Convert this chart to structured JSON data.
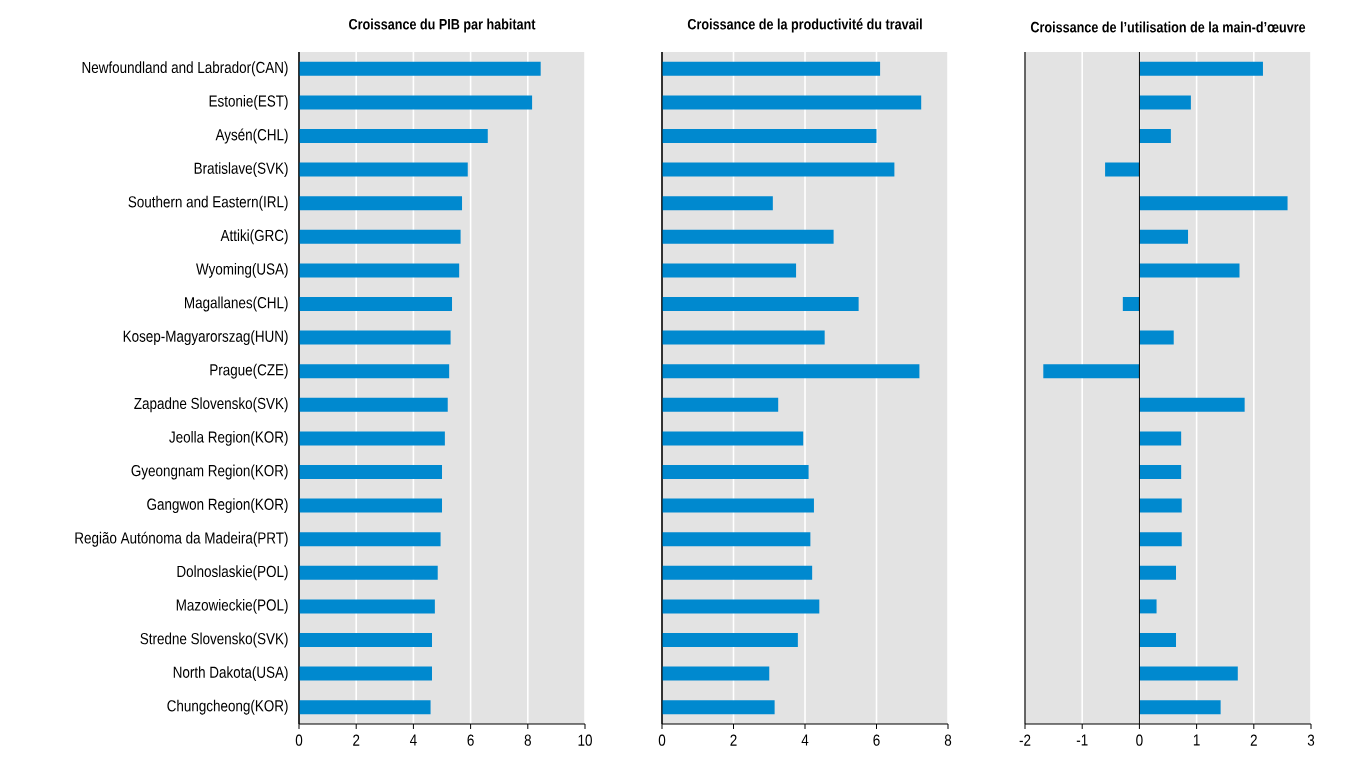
{
  "chart_data": [
    {
      "type": "bar",
      "orientation": "horizontal",
      "title": "Croissance du PIB par habitant",
      "categories": [
        "Newfoundland and Labrador(CAN)",
        "Estonie(EST)",
        "Aysén(CHL)",
        "Bratislave(SVK)",
        "Southern and Eastern(IRL)",
        "Attiki(GRC)",
        "Wyoming(USA)",
        "Magallanes(CHL)",
        "Kosep-Magyarorszag(HUN)",
        "Prague(CZE)",
        "Zapadne Slovensko(SVK)",
        "Jeolla Region(KOR)",
        "Gyeongnam Region(KOR)",
        "Gangwon Region(KOR)",
        "Região Autónoma da Madeira(PRT)",
        "Dolnoslaskie(POL)",
        "Mazowieckie(POL)",
        "Stredne Slovensko(SVK)",
        "North Dakota(USA)",
        "Chungcheong(KOR)"
      ],
      "values": [
        8.45,
        8.15,
        6.6,
        5.9,
        5.7,
        5.65,
        5.6,
        5.35,
        5.3,
        5.25,
        5.2,
        5.1,
        5.0,
        5.0,
        4.95,
        4.85,
        4.75,
        4.65,
        4.65,
        4.6
      ],
      "color": "#0089cf",
      "xlim": [
        0,
        10
      ],
      "xticks": [
        0,
        2,
        4,
        6,
        8,
        10
      ],
      "grid": "x"
    },
    {
      "type": "bar",
      "orientation": "horizontal",
      "title": "Croissance de la productivité du travail",
      "values": [
        6.1,
        7.25,
        6.0,
        6.5,
        3.1,
        4.8,
        3.75,
        5.5,
        4.55,
        7.2,
        3.25,
        3.95,
        4.1,
        4.25,
        4.15,
        4.2,
        4.4,
        3.8,
        3.0,
        3.15
      ],
      "color": "#0089cf",
      "xlim": [
        0,
        8
      ],
      "xticks": [
        0,
        2,
        4,
        6,
        8
      ],
      "grid": "x",
      "tick_labels": "x"
    },
    {
      "type": "bar",
      "orientation": "horizontal",
      "title": "Croissance de l’utilisation de la main-d’œuvre",
      "values": [
        2.16,
        0.9,
        0.55,
        -0.6,
        2.59,
        0.85,
        1.75,
        -0.29,
        0.6,
        -1.68,
        1.84,
        0.73,
        0.73,
        0.74,
        0.74,
        0.64,
        0.3,
        0.64,
        1.72,
        1.42
      ],
      "color": "#0089cf",
      "xlim": [
        -2,
        3
      ],
      "xticks": [
        -2,
        -1,
        0,
        1,
        2,
        3
      ],
      "grid": "x",
      "tick_labels": "x"
    }
  ]
}
